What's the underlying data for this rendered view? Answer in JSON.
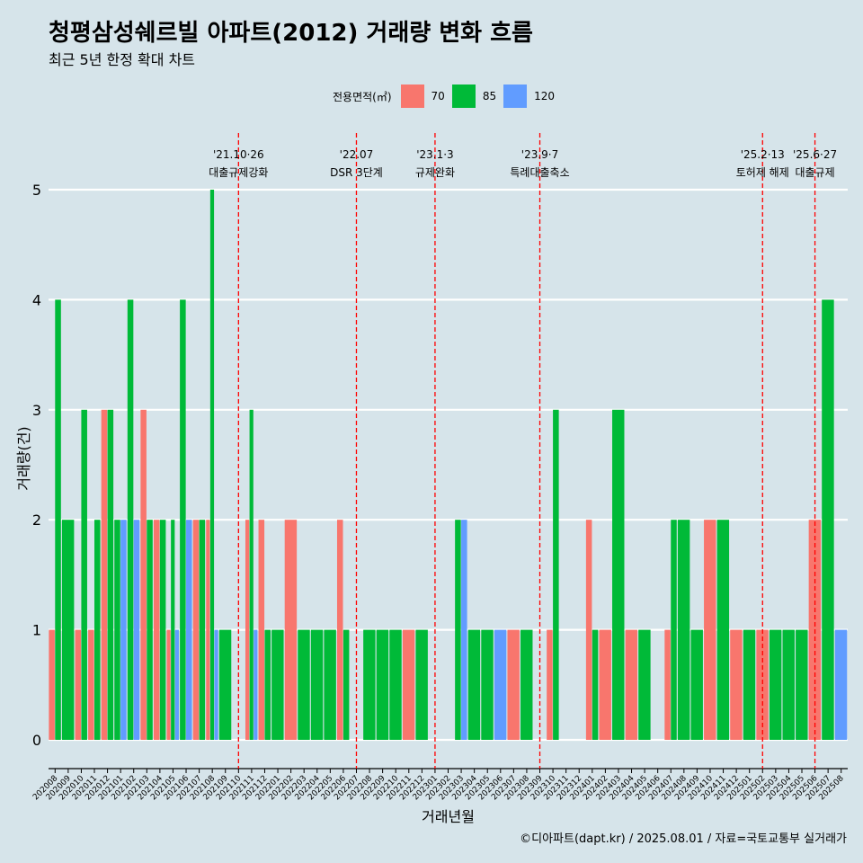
{
  "title": "청평삼성쉐르빌 아파트(2012) 거래량 변화 흐름",
  "subtitle": "최근 5년 한정 확대 차트",
  "caption": "©디아파트(dapt.kr) / 2025.08.01 / 자료=국토교통부 실거래가",
  "legend": {
    "title": "전용면적(㎡)",
    "items": [
      {
        "label": "70",
        "color": "#f8766d"
      },
      {
        "label": "85",
        "color": "#00ba38"
      },
      {
        "label": "120",
        "color": "#619cff"
      }
    ]
  },
  "chart_data": {
    "type": "bar",
    "xlabel": "거래년월",
    "ylabel": "거래량(건)",
    "ylim": [
      0,
      5
    ],
    "yticks": [
      0,
      1,
      2,
      3,
      4,
      5
    ],
    "categories": [
      "202008",
      "202009",
      "202010",
      "202011",
      "202012",
      "202101",
      "202102",
      "202103",
      "202104",
      "202105",
      "202106",
      "202107",
      "202108",
      "202109",
      "202110",
      "202111",
      "202112",
      "202201",
      "202202",
      "202203",
      "202204",
      "202205",
      "202206",
      "202207",
      "202208",
      "202209",
      "202210",
      "202211",
      "202212",
      "202301",
      "202302",
      "202303",
      "202304",
      "202305",
      "202306",
      "202307",
      "202308",
      "202309",
      "202310",
      "202311",
      "202312",
      "202401",
      "202402",
      "202403",
      "202404",
      "202405",
      "202406",
      "202407",
      "202408",
      "202409",
      "202410",
      "202411",
      "202412",
      "202501",
      "202502",
      "202503",
      "202504",
      "202505",
      "202506",
      "202507",
      "202508"
    ],
    "series": [
      {
        "name": "70",
        "color": "#f8766d",
        "values": [
          1,
          0,
          1,
          1,
          3,
          0,
          0,
          3,
          2,
          1,
          0,
          2,
          2,
          0,
          0,
          2,
          2,
          0,
          2,
          0,
          0,
          0,
          2,
          0,
          0,
          0,
          0,
          1,
          0,
          0,
          0,
          0,
          0,
          0,
          0,
          1,
          0,
          0,
          1,
          0,
          0,
          2,
          1,
          0,
          1,
          0,
          0,
          1,
          0,
          0,
          2,
          0,
          1,
          0,
          1,
          0,
          0,
          0,
          2,
          0,
          0
        ]
      },
      {
        "name": "85",
        "color": "#00ba38",
        "values": [
          4,
          2,
          3,
          2,
          3,
          2,
          4,
          2,
          2,
          2,
          4,
          2,
          5,
          1,
          0,
          3,
          1,
          1,
          0,
          1,
          1,
          1,
          1,
          0,
          1,
          1,
          1,
          0,
          1,
          0,
          0,
          2,
          1,
          1,
          0,
          0,
          1,
          0,
          3,
          0,
          0,
          1,
          0,
          3,
          0,
          1,
          0,
          2,
          2,
          1,
          0,
          2,
          0,
          1,
          0,
          1,
          1,
          1,
          0,
          4,
          0
        ]
      },
      {
        "name": "120",
        "color": "#619cff",
        "values": [
          0,
          0,
          0,
          0,
          0,
          2,
          2,
          0,
          0,
          1,
          2,
          0,
          1,
          0,
          0,
          1,
          0,
          0,
          0,
          0,
          0,
          0,
          0,
          0,
          0,
          0,
          0,
          0,
          0,
          0,
          0,
          2,
          0,
          0,
          1,
          0,
          0,
          0,
          0,
          0,
          0,
          0,
          0,
          0,
          0,
          0,
          0,
          0,
          0,
          0,
          0,
          0,
          0,
          0,
          0,
          0,
          0,
          0,
          0,
          0,
          1
        ]
      }
    ],
    "annotations": [
      {
        "date": "'21.10·26",
        "label": "대출규제강화",
        "x": "202110"
      },
      {
        "date": "'22.07",
        "label": "DSR 3단계",
        "x": "202207"
      },
      {
        "date": "'23.1·3",
        "label": "규제완화",
        "x": "202301"
      },
      {
        "date": "'23.9·7",
        "label": "특례대출축소",
        "x": "202309"
      },
      {
        "date": "'25.2·13",
        "label": "토허제 해제",
        "x": "202502"
      },
      {
        "date": "'25.6·27",
        "label": "대출규제",
        "x": "202506"
      }
    ],
    "grid": true,
    "legend_position": "top"
  }
}
